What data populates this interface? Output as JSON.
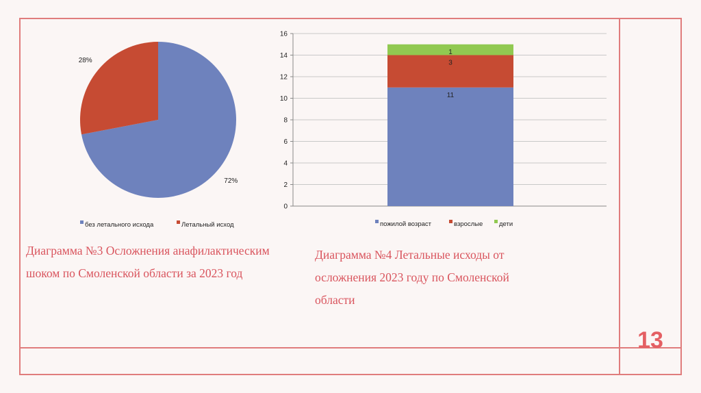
{
  "slide": {
    "page_number": "13",
    "accent_color": "#e07c7c"
  },
  "charts": {
    "pie_caption": "Диаграмма №3 Осложнения анафилактическим шоком по Смоленской области за 2023 год",
    "bar_caption": "Диаграмма №4 Летальные исходы от осложнения 2023 году по Смоленской области"
  },
  "chart_data": [
    {
      "type": "pie",
      "categories": [
        "без летального исхода",
        "Летальный исход"
      ],
      "values": [
        72,
        28
      ],
      "data_labels": [
        "72%",
        "28%"
      ],
      "colors": [
        "#6e82bd",
        "#c64b33"
      ],
      "legend_position": "bottom"
    },
    {
      "type": "bar",
      "stacked": true,
      "categories": [
        ""
      ],
      "series": [
        {
          "name": "пожилой возраст",
          "values": [
            11
          ],
          "color": "#6e82bd"
        },
        {
          "name": "взрослые",
          "values": [
            3
          ],
          "color": "#c64b33"
        },
        {
          "name": "дети",
          "values": [
            1
          ],
          "color": "#91c951"
        }
      ],
      "ylim": [
        0,
        16
      ],
      "y_ticks": [
        0,
        2,
        4,
        6,
        8,
        10,
        12,
        14,
        16
      ],
      "grid": true,
      "legend_position": "bottom"
    }
  ]
}
